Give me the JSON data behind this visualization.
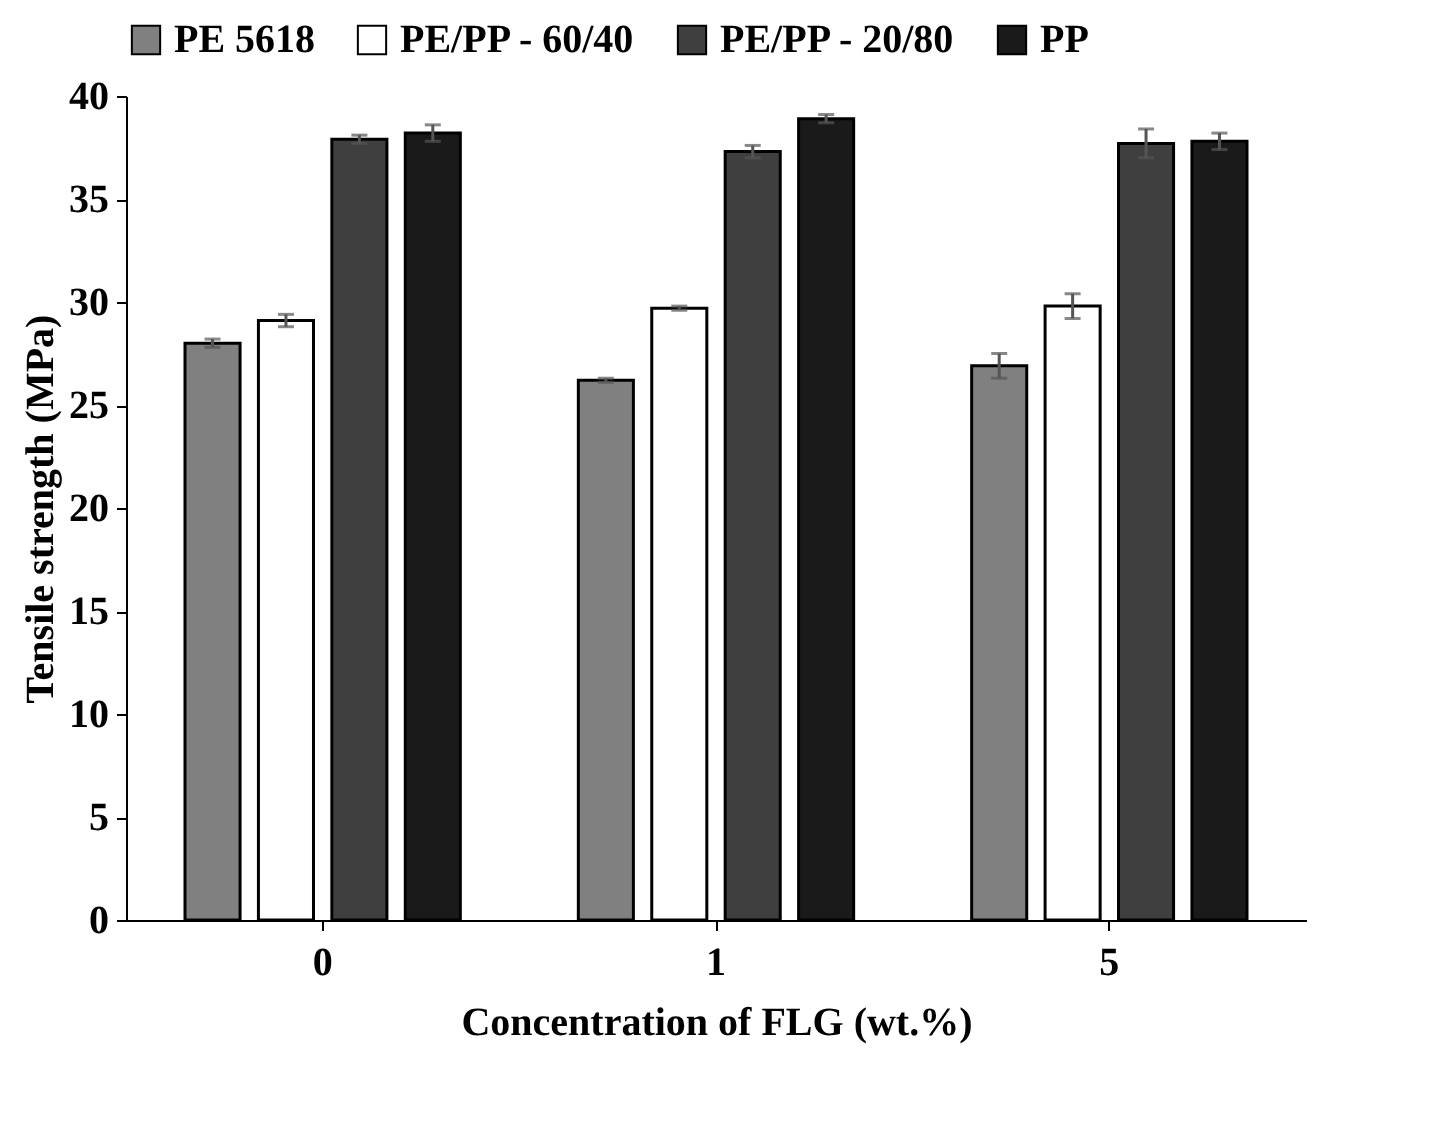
{
  "chart_data": {
    "type": "bar",
    "xlabel": "Concentration of FLG (wt.%)",
    "ylabel": "Tensile strength (MPa)",
    "categories": [
      "0",
      "1",
      "5"
    ],
    "ylim": [
      0,
      40
    ],
    "yticks": [
      0,
      5,
      10,
      15,
      20,
      25,
      30,
      35,
      40
    ],
    "grid": false,
    "legend": "top",
    "series": [
      {
        "name": "PE 5618",
        "color": "#808080",
        "values": [
          28.0,
          26.2,
          26.9
        ],
        "errors": [
          0.2,
          0.1,
          0.6
        ]
      },
      {
        "name": "PE/PP - 60/40",
        "color": "#ffffff",
        "values": [
          29.1,
          29.7,
          29.8
        ],
        "errors": [
          0.3,
          0.1,
          0.6
        ]
      },
      {
        "name": "PE/PP - 20/80",
        "color": "#3f3f3f",
        "values": [
          37.9,
          37.3,
          37.7
        ],
        "errors": [
          0.2,
          0.3,
          0.7
        ]
      },
      {
        "name": "PP",
        "color": "#1a1a1a",
        "values": [
          38.2,
          38.9,
          37.8
        ],
        "errors": [
          0.4,
          0.2,
          0.4
        ]
      }
    ]
  }
}
